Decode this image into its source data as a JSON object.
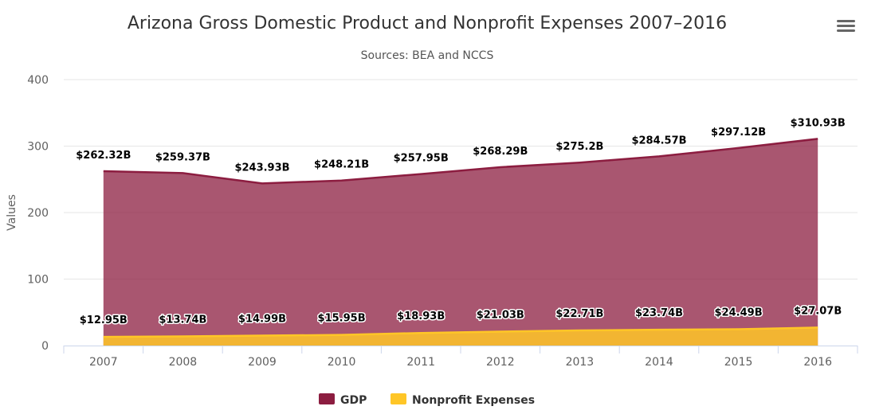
{
  "chart_data": {
    "type": "area",
    "title": "Arizona Gross Domestic Product and Nonprofit Expenses 2007–2016",
    "subtitle": "Sources: BEA and NCCS",
    "xlabel": "",
    "ylabel": "Values",
    "ylim": [
      0,
      400
    ],
    "yticks": [
      "0",
      "100",
      "200",
      "300",
      "400"
    ],
    "ytick_values": [
      0,
      100,
      200,
      300,
      400
    ],
    "categories": [
      "2007",
      "2008",
      "2009",
      "2010",
      "2011",
      "2012",
      "2013",
      "2014",
      "2015",
      "2016"
    ],
    "grid": true,
    "legend_placement": "bottom-center",
    "series": [
      {
        "name": "GDP",
        "color": "#8C1D40",
        "values": [
          262.32,
          259.37,
          243.93,
          248.21,
          257.95,
          268.29,
          275.2,
          284.57,
          297.12,
          310.93
        ],
        "labels": [
          "$262.32B",
          "$259.37B",
          "$243.93B",
          "$248.21B",
          "$257.95B",
          "$268.29B",
          "$275.2B",
          "$284.57B",
          "$297.12B",
          "$310.93B"
        ]
      },
      {
        "name": "Nonprofit Expenses",
        "color": "#FFC627",
        "values": [
          12.95,
          13.74,
          14.99,
          15.95,
          18.93,
          21.03,
          22.71,
          23.74,
          24.49,
          27.07
        ],
        "labels": [
          "$12.95B",
          "$13.74B",
          "$14.99B",
          "$15.95B",
          "$18.93B",
          "$21.03B",
          "$22.71B",
          "$23.74B",
          "$24.49B",
          "$27.07B"
        ]
      }
    ]
  }
}
